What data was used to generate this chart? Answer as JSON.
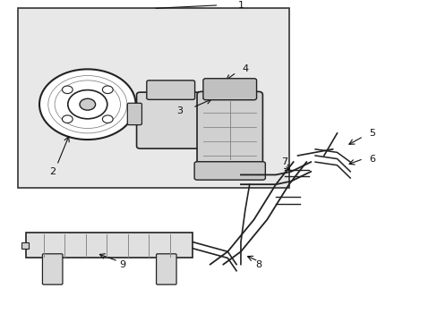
{
  "background_color": "#ffffff",
  "fig_width": 4.89,
  "fig_height": 3.6,
  "dpi": 100,
  "color": "#222222",
  "gray": "#888888",
  "light_gray": "#cccccc"
}
